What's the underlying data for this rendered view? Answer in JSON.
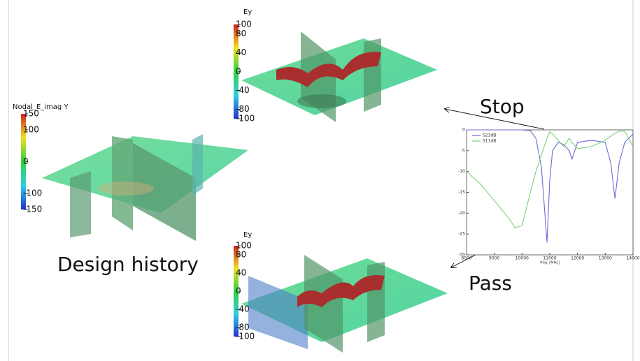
{
  "labels": {
    "stop": "Stop",
    "pass": "Pass",
    "design_history": "Design history"
  },
  "colorbars": [
    {
      "title": "Nodal_E_imag Y",
      "lim": [
        -150,
        150
      ],
      "ticks": [
        150,
        100,
        0,
        -100,
        -150
      ]
    },
    {
      "title": "Ey",
      "lim": [
        -100,
        100
      ],
      "ticks": [
        100,
        80,
        40,
        0,
        -40,
        -80,
        -100
      ]
    },
    {
      "title": "Ey",
      "lim": [
        -100,
        100
      ],
      "ticks": [
        100,
        80,
        40,
        0,
        -40,
        -80,
        -100
      ]
    }
  ],
  "chart_data": {
    "type": "line",
    "x_label": "freq. [MHz]",
    "x": [
      8000,
      8500,
      9000,
      9500,
      9750,
      10000,
      10300,
      10500,
      10700,
      10900,
      11000,
      11100,
      11300,
      11500,
      11700,
      11800,
      12000,
      12500,
      13000,
      13200,
      13350,
      13500,
      13700,
      14000
    ],
    "series": [
      {
        "name": "S21dB",
        "color": "#6b6bd8",
        "values": [
          0,
          0,
          0,
          0,
          0,
          0,
          -0.2,
          -2,
          -9,
          -27,
          -12,
          -5,
          -3,
          -3.5,
          -5,
          -7,
          -3,
          -2.5,
          -3,
          -8,
          -16.5,
          -8,
          -3,
          -1
        ]
      },
      {
        "name": "S11dB",
        "color": "#7ccf7c",
        "values": [
          -10,
          -13,
          -17,
          -21,
          -23.5,
          -23,
          -15,
          -10,
          -6,
          -2,
          -0.5,
          -1,
          -2.5,
          -4,
          -2,
          -3,
          -4.5,
          -4,
          -2.5,
          -1.5,
          -0.8,
          -0.3,
          -0.3,
          -4
        ]
      }
    ],
    "xlim": [
      8000,
      14000
    ],
    "ylim": [
      -30,
      0
    ],
    "xticks": [
      8000,
      9000,
      10000,
      11000,
      12000,
      13000,
      14000
    ],
    "yticks": [
      0,
      -5,
      -10,
      -15,
      -20,
      -25,
      -30
    ]
  }
}
